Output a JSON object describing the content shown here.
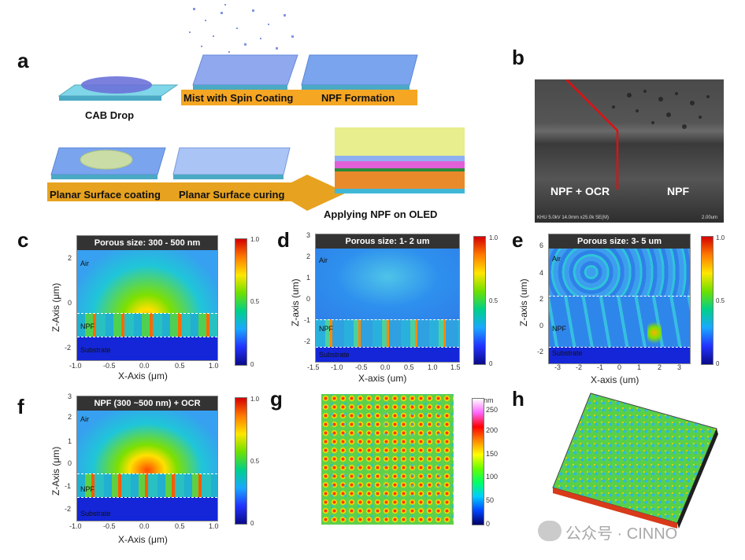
{
  "panels": {
    "a": {
      "label": "a",
      "cab_drop": "CAB Drop",
      "mist": "Mist with Spin Coating",
      "npf_formation": "NPF Formation",
      "planar_coating": "Planar Surface coating",
      "planar_curing": "Planar Surface curing",
      "applying": "Applying NPF on OLED"
    },
    "b": {
      "label": "b",
      "left_text": "NPF + OCR",
      "right_text": "NPF",
      "footer": "KHU 5.0kV 14.0mm x25.0k SE(M)",
      "scale": "2.00um"
    },
    "c": {
      "label": "c",
      "title": "Porous size: 300 - 500 nm",
      "xlabel": "X-Axis (μm)",
      "ylabel": "Z-Axis (μm)",
      "xticks": [
        "-1.0",
        "-0.5",
        "0.0",
        "0.5",
        "1.0"
      ],
      "yticks": [
        "2",
        "0",
        "-2"
      ],
      "air": "Air",
      "npf": "NPF",
      "substrate": "Substrate",
      "cbar_ticks": [
        "1.0",
        "0.5",
        "0"
      ]
    },
    "d": {
      "label": "d",
      "title": "Porous size: 1- 2 um",
      "xlabel": "X-axis (um)",
      "ylabel": "Z-axis (um)",
      "xticks": [
        "-1.5",
        "-1.0",
        "-0.5",
        "0.0",
        "0.5",
        "1.0",
        "1.5"
      ],
      "yticks": [
        "3",
        "2",
        "1",
        "0",
        "-1",
        "-2"
      ],
      "air": "Air",
      "npf": "NPF",
      "substrate": "Substrate",
      "cbar_ticks": [
        "1.0",
        "0.5",
        "0"
      ]
    },
    "e": {
      "label": "e",
      "title": "Porous size: 3- 5 um",
      "xlabel": "X-axis (um)",
      "ylabel": "Z-axis (um)",
      "xticks": [
        "-3",
        "-2",
        "-1",
        "0",
        "1",
        "2",
        "3"
      ],
      "yticks": [
        "6",
        "4",
        "2",
        "0",
        "-2"
      ],
      "air": "Air",
      "npf": "NPF",
      "substrate": "Substrate",
      "cbar_ticks": [
        "1.0",
        "0.5",
        "0"
      ]
    },
    "f": {
      "label": "f",
      "title": "NPF (300 ~500 nm) + OCR",
      "xlabel": "X-Axis (μm)",
      "ylabel": "Z-Axis (μm)",
      "xticks": [
        "-1.0",
        "-0.5",
        "0.0",
        "0.5",
        "1.0"
      ],
      "yticks": [
        "3",
        "2",
        "1",
        "0",
        "-1",
        "-2"
      ],
      "air": "Air",
      "npf": "NPF",
      "substrate": "Substrate",
      "cbar_ticks": [
        "1.0",
        "0.5",
        "0"
      ]
    },
    "g": {
      "label": "g",
      "unit": "nm",
      "cbar_ticks": [
        "250",
        "200",
        "150",
        "100",
        "50",
        "0"
      ]
    },
    "h": {
      "label": "h"
    }
  },
  "watermark": "公众号 · CINNO"
}
